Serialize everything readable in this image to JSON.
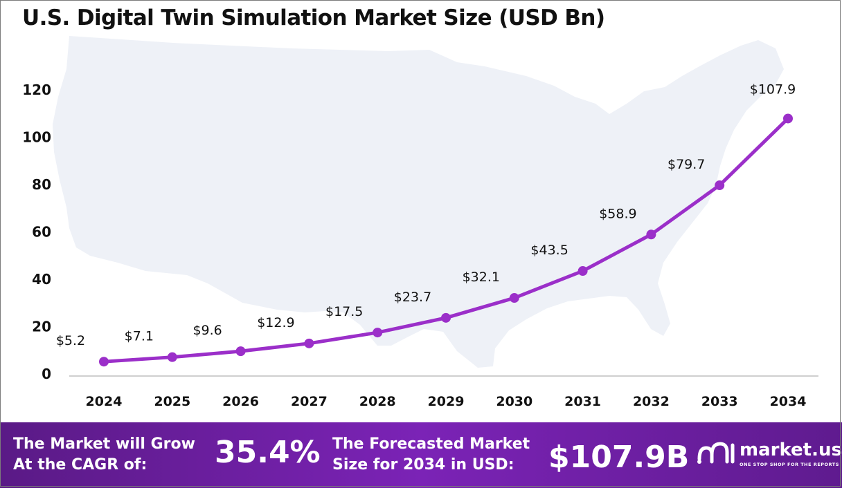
{
  "chart_data": {
    "type": "line",
    "title": "U.S. Digital Twin Simulation Market Size (USD Bn)",
    "xlabel": "",
    "ylabel": "",
    "categories": [
      "2024",
      "2025",
      "2026",
      "2027",
      "2028",
      "2029",
      "2030",
      "2031",
      "2032",
      "2033",
      "2034"
    ],
    "values": [
      5.2,
      7.1,
      9.6,
      12.9,
      17.5,
      23.7,
      32.1,
      43.5,
      58.9,
      79.7,
      107.9
    ],
    "data_labels": [
      "$5.2",
      "$7.1",
      "$9.6",
      "$12.9",
      "$17.5",
      "$23.7",
      "$32.1",
      "$43.5",
      "$58.9",
      "$79.7",
      "$107.9"
    ],
    "yticks": [
      "0",
      "20",
      "40",
      "60",
      "80",
      "100",
      "120"
    ],
    "ylim": [
      0,
      120
    ],
    "grid": false,
    "legend": "none",
    "line_color": "#9b2fc9",
    "background_map": "united-states-map"
  },
  "footer": {
    "cagr_label_line1": "The Market will Grow",
    "cagr_label_line2": "At the CAGR of:",
    "cagr_value": "35.4%",
    "forecast_label_line1": "The Forecasted Market",
    "forecast_label_line2": "Size for 2034 in USD:",
    "forecast_value": "$107.9B",
    "brand_name": "market.us",
    "brand_tagline": "ONE STOP SHOP FOR THE REPORTS",
    "brand_icon": "market-us-logo-icon"
  }
}
